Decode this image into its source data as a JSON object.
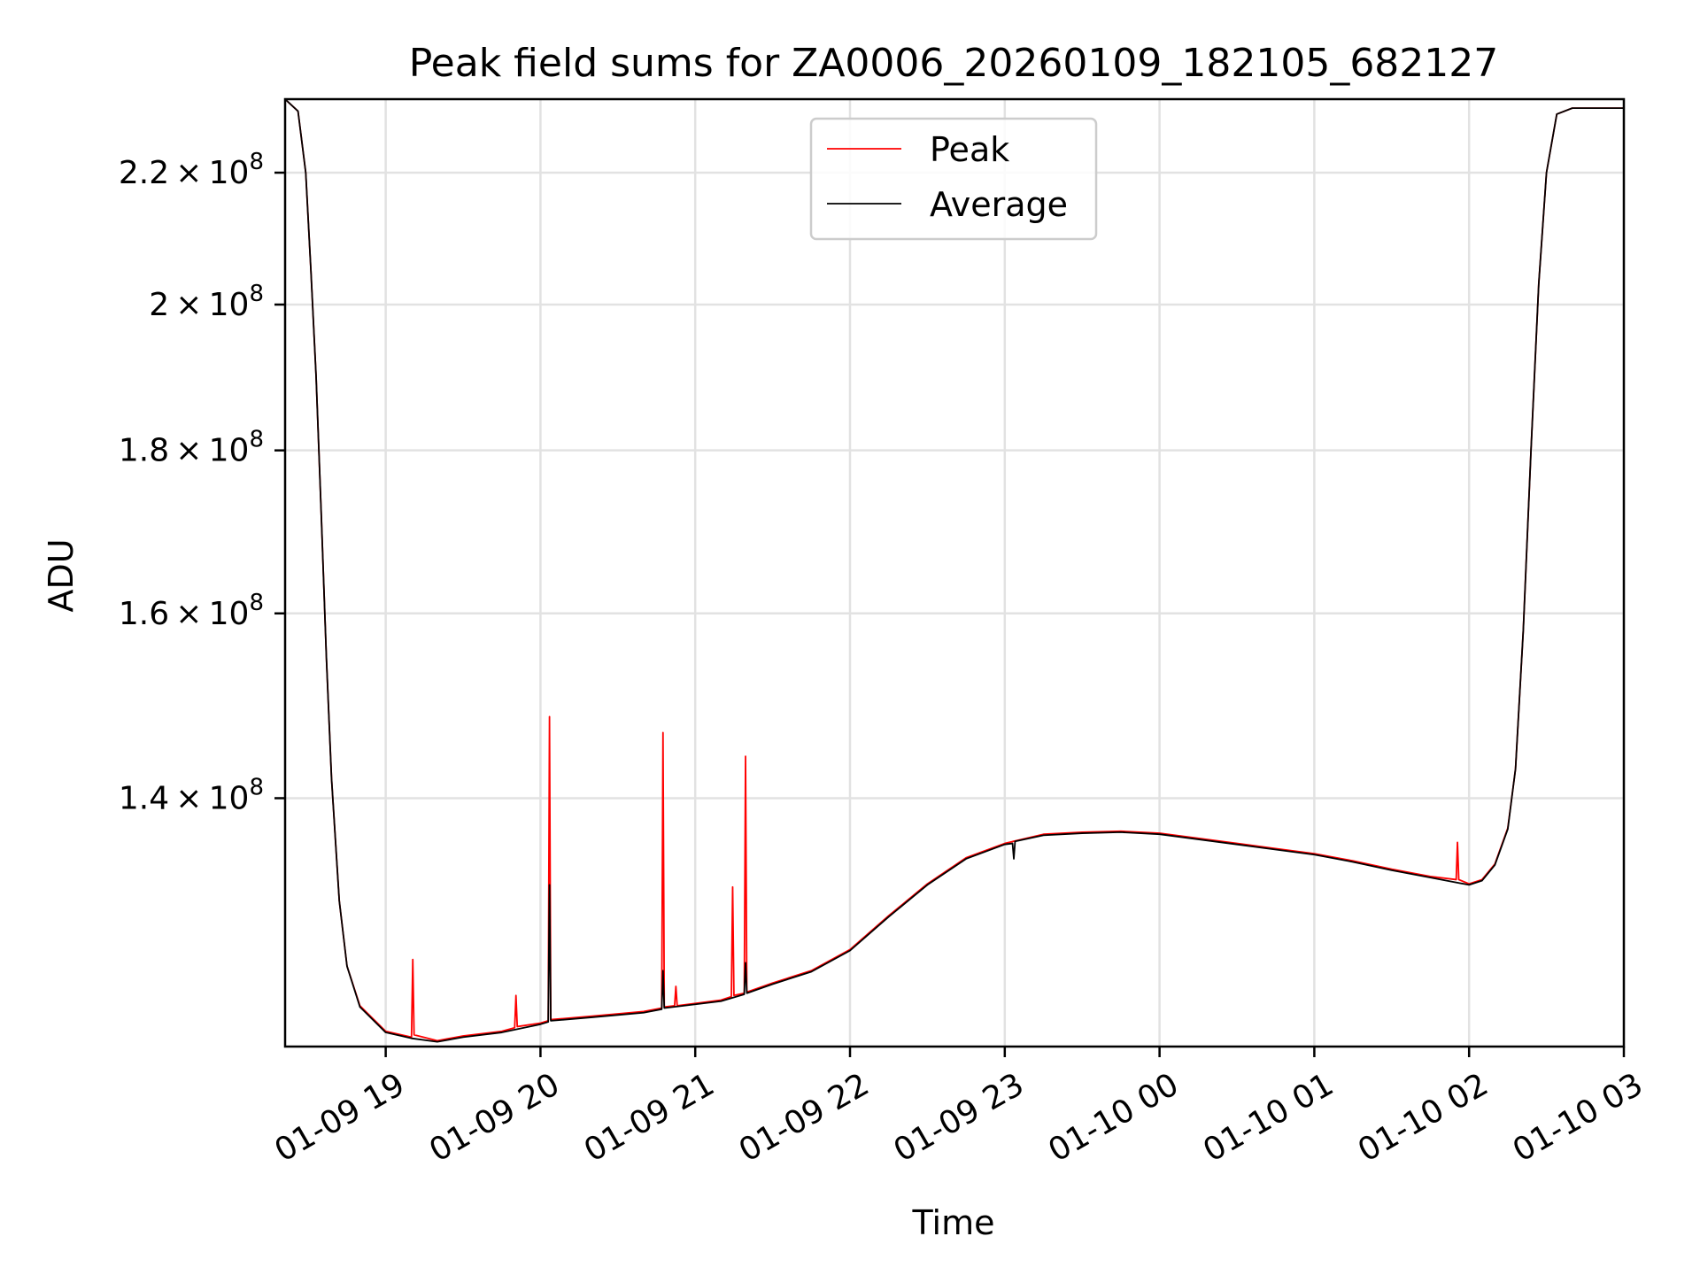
{
  "chart_data": {
    "type": "line",
    "title": "Peak field sums for ZA0006_20260109_182105_682127",
    "xlabel": "Time",
    "ylabel": "ADU",
    "yscale": "log",
    "xlim": [
      "2026-01-09 18:21",
      "2026-01-10 03:00"
    ],
    "ylim": [
      117000000,
      232000000
    ],
    "grid": true,
    "legend_position": "top-center",
    "x_ticks": [
      {
        "t": "2026-01-09 19:00",
        "label": "01-09 19"
      },
      {
        "t": "2026-01-09 20:00",
        "label": "01-09 20"
      },
      {
        "t": "2026-01-09 21:00",
        "label": "01-09 21"
      },
      {
        "t": "2026-01-09 22:00",
        "label": "01-09 22"
      },
      {
        "t": "2026-01-09 23:00",
        "label": "01-09 23"
      },
      {
        "t": "2026-01-10 00:00",
        "label": "01-10 00"
      },
      {
        "t": "2026-01-10 01:00",
        "label": "01-10 01"
      },
      {
        "t": "2026-01-10 02:00",
        "label": "01-10 02"
      },
      {
        "t": "2026-01-10 03:00",
        "label": "01-10 03"
      }
    ],
    "y_ticks": [
      {
        "v": 140000000,
        "base": "1.4",
        "exp": "8"
      },
      {
        "v": 160000000,
        "base": "1.6",
        "exp": "8"
      },
      {
        "v": 180000000,
        "base": "1.8",
        "exp": "8"
      },
      {
        "v": 200000000,
        "base": "2",
        "exp": "8"
      },
      {
        "v": 220000000,
        "base": "2.2",
        "exp": "8"
      }
    ],
    "series": [
      {
        "name": "Peak",
        "color": "#ff0000",
        "points": [
          [
            "2026-01-09 18:21",
            232000000
          ],
          [
            "2026-01-09 18:26",
            230000000
          ],
          [
            "2026-01-09 18:29",
            220000000
          ],
          [
            "2026-01-09 18:31",
            205000000
          ],
          [
            "2026-01-09 18:33",
            190000000
          ],
          [
            "2026-01-09 18:35",
            172000000
          ],
          [
            "2026-01-09 18:37",
            155000000
          ],
          [
            "2026-01-09 18:39",
            142000000
          ],
          [
            "2026-01-09 18:42",
            130000000
          ],
          [
            "2026-01-09 18:45",
            124000000
          ],
          [
            "2026-01-09 18:50",
            120500000
          ],
          [
            "2026-01-09 19:00",
            118300000
          ],
          [
            "2026-01-09 19:10",
            117800000
          ],
          [
            "2026-01-09 19:10.5",
            124600000
          ],
          [
            "2026-01-09 19:11",
            118000000
          ],
          [
            "2026-01-09 19:20",
            117500000
          ],
          [
            "2026-01-09 19:30",
            117900000
          ],
          [
            "2026-01-09 19:45",
            118300000
          ],
          [
            "2026-01-09 19:50",
            118600000
          ],
          [
            "2026-01-09 19:50.5",
            121400000
          ],
          [
            "2026-01-09 19:51",
            118700000
          ],
          [
            "2026-01-09 20:00",
            119000000
          ],
          [
            "2026-01-09 20:03",
            119200000
          ],
          [
            "2026-01-09 20:03.5",
            148500000
          ],
          [
            "2026-01-09 20:04",
            119300000
          ],
          [
            "2026-01-09 20:20",
            119600000
          ],
          [
            "2026-01-09 20:40",
            120000000
          ],
          [
            "2026-01-09 20:47",
            120300000
          ],
          [
            "2026-01-09 20:47.5",
            146800000
          ],
          [
            "2026-01-09 20:48",
            120400000
          ],
          [
            "2026-01-09 20:52",
            120500000
          ],
          [
            "2026-01-09 20:52.5",
            122200000
          ],
          [
            "2026-01-09 20:53",
            120500000
          ],
          [
            "2026-01-09 21:10",
            121000000
          ],
          [
            "2026-01-09 21:14",
            121300000
          ],
          [
            "2026-01-09 21:14.5",
            131300000
          ],
          [
            "2026-01-09 21:15",
            121400000
          ],
          [
            "2026-01-09 21:19",
            121600000
          ],
          [
            "2026-01-09 21:19.5",
            144300000
          ],
          [
            "2026-01-09 21:20",
            121700000
          ],
          [
            "2026-01-09 21:30",
            122500000
          ],
          [
            "2026-01-09 21:45",
            123600000
          ],
          [
            "2026-01-09 22:00",
            125500000
          ],
          [
            "2026-01-09 22:15",
            128600000
          ],
          [
            "2026-01-09 22:30",
            131600000
          ],
          [
            "2026-01-09 22:45",
            134100000
          ],
          [
            "2026-01-09 23:00",
            135500000
          ],
          [
            "2026-01-09 23:15",
            136400000
          ],
          [
            "2026-01-09 23:30",
            136600000
          ],
          [
            "2026-01-09 23:45",
            136700000
          ],
          [
            "2026-01-10 00:00",
            136500000
          ],
          [
            "2026-01-10 00:15",
            136000000
          ],
          [
            "2026-01-10 00:30",
            135500000
          ],
          [
            "2026-01-10 00:45",
            135000000
          ],
          [
            "2026-01-10 01:00",
            134500000
          ],
          [
            "2026-01-10 01:15",
            133800000
          ],
          [
            "2026-01-10 01:30",
            133000000
          ],
          [
            "2026-01-10 01:45",
            132300000
          ],
          [
            "2026-01-10 01:55",
            132000000
          ],
          [
            "2026-01-10 01:55.5",
            135600000
          ],
          [
            "2026-01-10 01:56",
            132000000
          ],
          [
            "2026-01-10 02:00",
            131600000
          ],
          [
            "2026-01-10 02:05",
            132000000
          ],
          [
            "2026-01-10 02:10",
            133500000
          ],
          [
            "2026-01-10 02:15",
            137000000
          ],
          [
            "2026-01-10 02:18",
            143000000
          ],
          [
            "2026-01-10 02:21",
            158000000
          ],
          [
            "2026-01-10 02:24",
            180000000
          ],
          [
            "2026-01-10 02:27",
            203000000
          ],
          [
            "2026-01-10 02:30",
            220000000
          ],
          [
            "2026-01-10 02:34",
            229500000
          ],
          [
            "2026-01-10 02:40",
            230500000
          ],
          [
            "2026-01-10 03:00",
            230500000
          ]
        ]
      },
      {
        "name": "Average",
        "color": "#000000",
        "points": [
          [
            "2026-01-09 18:21",
            232000000
          ],
          [
            "2026-01-09 18:26",
            230000000
          ],
          [
            "2026-01-09 18:29",
            220000000
          ],
          [
            "2026-01-09 18:31",
            205000000
          ],
          [
            "2026-01-09 18:33",
            190000000
          ],
          [
            "2026-01-09 18:35",
            172000000
          ],
          [
            "2026-01-09 18:37",
            155000000
          ],
          [
            "2026-01-09 18:39",
            142000000
          ],
          [
            "2026-01-09 18:42",
            130000000
          ],
          [
            "2026-01-09 18:45",
            124000000
          ],
          [
            "2026-01-09 18:50",
            120400000
          ],
          [
            "2026-01-09 19:00",
            118200000
          ],
          [
            "2026-01-09 19:10",
            117700000
          ],
          [
            "2026-01-09 19:20",
            117400000
          ],
          [
            "2026-01-09 19:30",
            117800000
          ],
          [
            "2026-01-09 19:45",
            118200000
          ],
          [
            "2026-01-09 20:00",
            118900000
          ],
          [
            "2026-01-09 20:03",
            119100000
          ],
          [
            "2026-01-09 20:03.5",
            131500000
          ],
          [
            "2026-01-09 20:04",
            119200000
          ],
          [
            "2026-01-09 20:20",
            119500000
          ],
          [
            "2026-01-09 20:40",
            119900000
          ],
          [
            "2026-01-09 20:47",
            120200000
          ],
          [
            "2026-01-09 20:47.5",
            123600000
          ],
          [
            "2026-01-09 20:48",
            120300000
          ],
          [
            "2026-01-09 21:10",
            120900000
          ],
          [
            "2026-01-09 21:19",
            121500000
          ],
          [
            "2026-01-09 21:19.5",
            124300000
          ],
          [
            "2026-01-09 21:20",
            121600000
          ],
          [
            "2026-01-09 21:30",
            122400000
          ],
          [
            "2026-01-09 21:45",
            123500000
          ],
          [
            "2026-01-09 22:00",
            125400000
          ],
          [
            "2026-01-09 22:15",
            128500000
          ],
          [
            "2026-01-09 22:30",
            131500000
          ],
          [
            "2026-01-09 22:45",
            134000000
          ],
          [
            "2026-01-09 23:00",
            135400000
          ],
          [
            "2026-01-09 23:03",
            135500000
          ],
          [
            "2026-01-09 23:03.5",
            134000000
          ],
          [
            "2026-01-09 23:04",
            135700000
          ],
          [
            "2026-01-09 23:15",
            136300000
          ],
          [
            "2026-01-09 23:30",
            136500000
          ],
          [
            "2026-01-09 23:45",
            136600000
          ],
          [
            "2026-01-10 00:00",
            136400000
          ],
          [
            "2026-01-10 00:15",
            135900000
          ],
          [
            "2026-01-10 00:30",
            135400000
          ],
          [
            "2026-01-10 00:45",
            134900000
          ],
          [
            "2026-01-10 01:00",
            134400000
          ],
          [
            "2026-01-10 01:15",
            133700000
          ],
          [
            "2026-01-10 01:30",
            132900000
          ],
          [
            "2026-01-10 01:45",
            132200000
          ],
          [
            "2026-01-10 02:00",
            131500000
          ],
          [
            "2026-01-10 02:05",
            131900000
          ],
          [
            "2026-01-10 02:10",
            133400000
          ],
          [
            "2026-01-10 02:15",
            136900000
          ],
          [
            "2026-01-10 02:18",
            143000000
          ],
          [
            "2026-01-10 02:21",
            158000000
          ],
          [
            "2026-01-10 02:24",
            180000000
          ],
          [
            "2026-01-10 02:27",
            203000000
          ],
          [
            "2026-01-10 02:30",
            220000000
          ],
          [
            "2026-01-10 02:34",
            229500000
          ],
          [
            "2026-01-10 02:40",
            230500000
          ],
          [
            "2026-01-10 03:00",
            230500000
          ]
        ]
      }
    ]
  }
}
